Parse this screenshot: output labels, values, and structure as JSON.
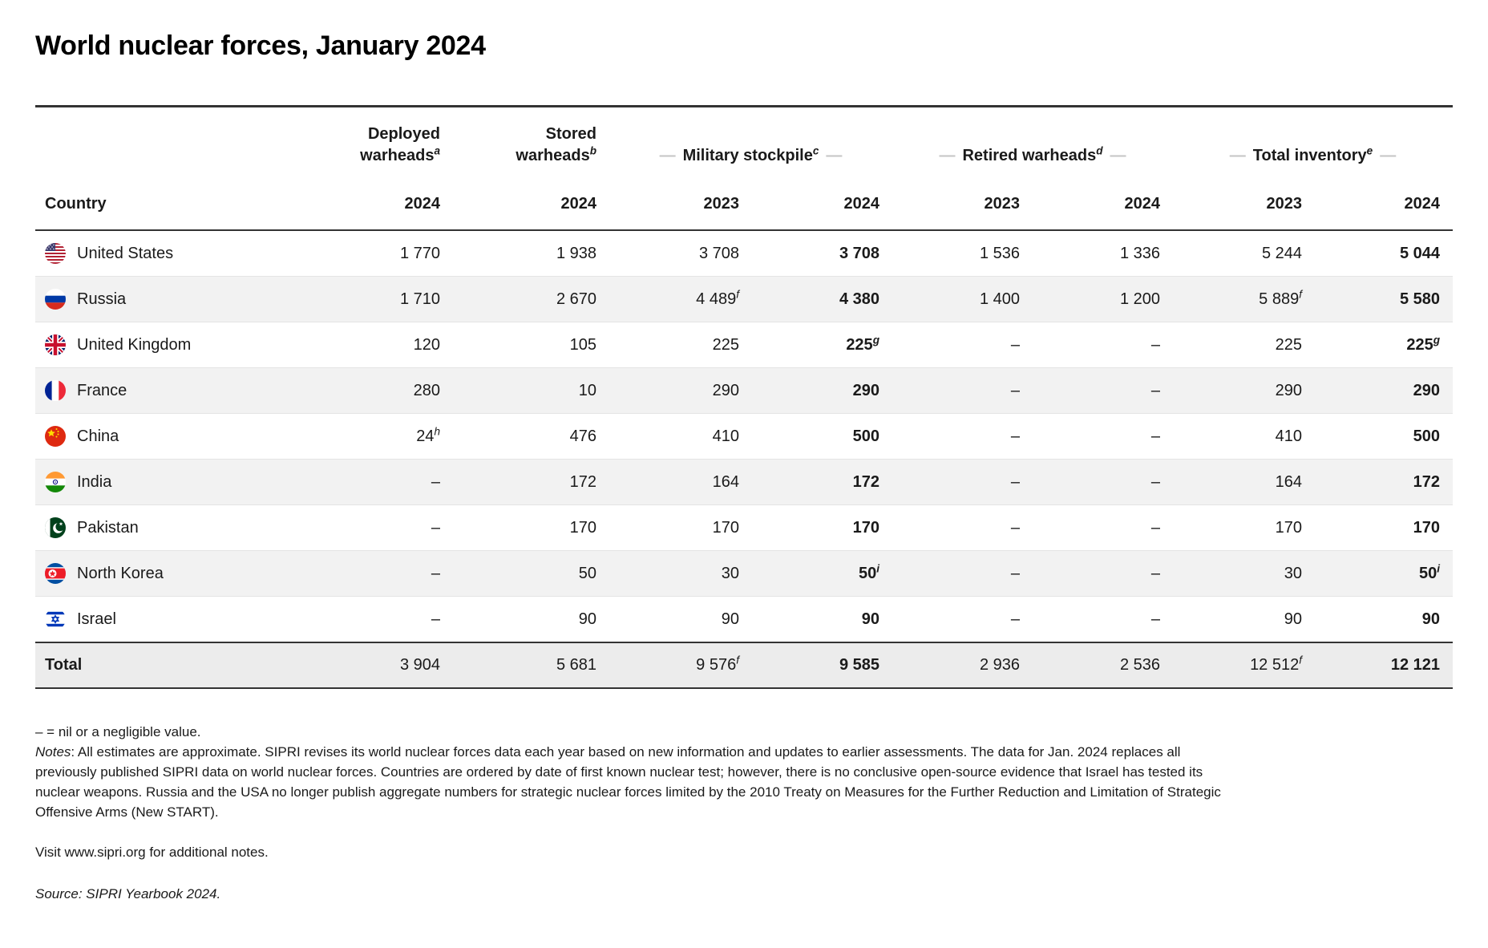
{
  "title": "World nuclear forces, January 2024",
  "accent_colors": {
    "rule_dark": "#333333",
    "row_stripe": "#f2f2f2",
    "total_row_bg": "#ececec",
    "header_dash": "#c4c4c4"
  },
  "table": {
    "country_header": "Country",
    "groups": [
      {
        "lines": [
          "Deployed",
          "warheads"
        ],
        "sup": "a",
        "dashes": false,
        "years": [
          "2024"
        ]
      },
      {
        "lines": [
          "Stored",
          "warheads"
        ],
        "sup": "b",
        "dashes": false,
        "years": [
          "2024"
        ]
      },
      {
        "lines": [
          "Military stockpile"
        ],
        "sup": "c",
        "dashes": true,
        "years": [
          "2023",
          "2024"
        ]
      },
      {
        "lines": [
          "Retired warheads"
        ],
        "sup": "d",
        "dashes": true,
        "years": [
          "2023",
          "2024"
        ]
      },
      {
        "lines": [
          "Total inventory"
        ],
        "sup": "e",
        "dashes": true,
        "years": [
          "2023",
          "2024"
        ]
      }
    ],
    "bold_value_columns": [
      3,
      7
    ],
    "rows": [
      {
        "country": "United States",
        "flag": "us-flag-icon",
        "values": [
          "1 770",
          "1 938",
          "3 708",
          "3 708",
          "1 536",
          "1 336",
          "5 244",
          "5 044"
        ]
      },
      {
        "country": "Russia",
        "flag": "russia-flag-icon",
        "values": [
          "1 710",
          "2 670",
          "4 489^f",
          "4 380",
          "1 400",
          "1 200",
          "5 889^f",
          "5 580"
        ]
      },
      {
        "country": "United Kingdom",
        "flag": "uk-flag-icon",
        "values": [
          "120",
          "105",
          "225",
          "225^g",
          "–",
          "–",
          "225",
          "225^g"
        ]
      },
      {
        "country": "France",
        "flag": "france-flag-icon",
        "values": [
          "280",
          "10",
          "290",
          "290",
          "–",
          "–",
          "290",
          "290"
        ]
      },
      {
        "country": "China",
        "flag": "china-flag-icon",
        "values": [
          "24^h",
          "476",
          "410",
          "500",
          "–",
          "–",
          "410",
          "500"
        ]
      },
      {
        "country": "India",
        "flag": "india-flag-icon",
        "values": [
          "–",
          "172",
          "164",
          "172",
          "–",
          "–",
          "164",
          "172"
        ]
      },
      {
        "country": "Pakistan",
        "flag": "pakistan-flag-icon",
        "values": [
          "–",
          "170",
          "170",
          "170",
          "–",
          "–",
          "170",
          "170"
        ]
      },
      {
        "country": "North Korea",
        "flag": "north-korea-flag-icon",
        "values": [
          "–",
          "50",
          "30",
          "50^i",
          "–",
          "–",
          "30",
          "50^i"
        ]
      },
      {
        "country": "Israel",
        "flag": "israel-flag-icon",
        "values": [
          "–",
          "90",
          "90",
          "90",
          "–",
          "–",
          "90",
          "90"
        ]
      }
    ],
    "total_row": {
      "label": "Total",
      "values": [
        "3 904",
        "5 681",
        "9 576^f",
        "9 585",
        "2 936",
        "2 536",
        "12 512^f",
        "12 121"
      ]
    }
  },
  "footnotes": {
    "nil": "– = nil or a negligible value.",
    "notes_label": "Notes",
    "notes_text": ": All estimates are approximate. SIPRI revises its world nuclear forces data each year based on new information and updates to earlier assessments. The data for Jan. 2024 replaces all previously published SIPRI data on world nuclear forces. Countries are ordered by date of first known nuclear test; however, there is no conclusive open-source evidence that Israel has tested its nuclear weapons. Russia and the USA no longer publish aggregate numbers for strategic nuclear forces limited by the 2010 Treaty on Measures for the Further Reduction and Limitation of Strategic Offensive Arms (New START).",
    "visit": "Visit www.sipri.org for additional notes.",
    "source": "Source: SIPRI Yearbook 2024."
  },
  "chart_data": {
    "type": "table",
    "title": "World nuclear forces, January 2024",
    "columns": [
      "Country",
      "Deployed warheads 2024",
      "Stored warheads 2024",
      "Military stockpile 2023",
      "Military stockpile 2024",
      "Retired warheads 2023",
      "Retired warheads 2024",
      "Total inventory 2023",
      "Total inventory 2024"
    ],
    "rows": [
      [
        "United States",
        1770,
        1938,
        3708,
        3708,
        1536,
        1336,
        5244,
        5044
      ],
      [
        "Russia",
        1710,
        2670,
        4489,
        4380,
        1400,
        1200,
        5889,
        5580
      ],
      [
        "United Kingdom",
        120,
        105,
        225,
        225,
        null,
        null,
        225,
        225
      ],
      [
        "France",
        280,
        10,
        290,
        290,
        null,
        null,
        290,
        290
      ],
      [
        "China",
        24,
        476,
        410,
        500,
        null,
        null,
        410,
        500
      ],
      [
        "India",
        null,
        172,
        164,
        172,
        null,
        null,
        164,
        172
      ],
      [
        "Pakistan",
        null,
        170,
        170,
        170,
        null,
        null,
        170,
        170
      ],
      [
        "North Korea",
        null,
        50,
        30,
        50,
        null,
        null,
        30,
        50
      ],
      [
        "Israel",
        null,
        90,
        90,
        90,
        null,
        null,
        90,
        90
      ],
      [
        "Total",
        3904,
        5681,
        9576,
        9585,
        2936,
        2536,
        12512,
        12121
      ]
    ],
    "footnote_superscripts_shown": [
      "a",
      "b",
      "c",
      "d",
      "e",
      "f",
      "g",
      "h",
      "i"
    ],
    "null_display": "–"
  }
}
